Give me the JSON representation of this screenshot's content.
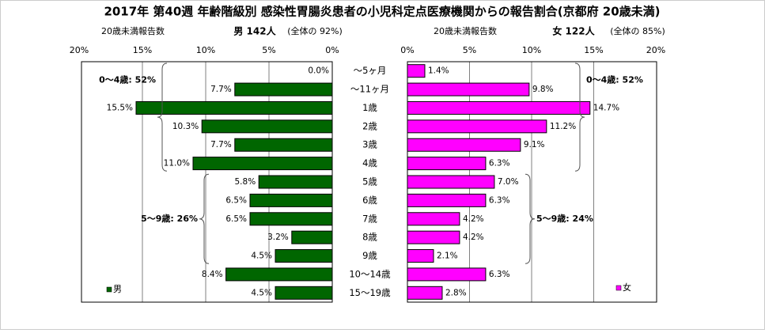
{
  "chart_data": {
    "type": "bar",
    "title": "2017年 第40週 年齢階級別 感染性胃腸炎患者の小児科定点医療機関からの報告割合(京都府 20歳未満)",
    "categories": [
      "～5ヶ月",
      "～11ヶ月",
      "1歳",
      "2歳",
      "3歳",
      "4歳",
      "5歳",
      "6歳",
      "7歳",
      "8歳",
      "9歳",
      "10～14歳",
      "15～19歳"
    ],
    "xticks_left": [
      "20%",
      "15%",
      "10%",
      "5%",
      "0%"
    ],
    "xticks_right": [
      "0%",
      "5%",
      "10%",
      "15%",
      "20%"
    ],
    "xlim": [
      0,
      20
    ],
    "series": [
      {
        "name": "男",
        "side": "left",
        "color": "#006600",
        "header_label": "20歳未満報告数",
        "header_count": "男 142人",
        "header_share": "(全体の 92%)",
        "values": [
          0.0,
          7.7,
          15.5,
          10.3,
          7.7,
          11.0,
          5.8,
          6.5,
          6.5,
          3.2,
          4.5,
          8.4,
          4.5
        ],
        "labels": [
          "0.0%",
          "7.7%",
          "15.5%",
          "10.3%",
          "7.7%",
          "11.0%",
          "5.8%",
          "6.5%",
          "6.5%",
          "3.2%",
          "4.5%",
          "8.4%",
          "4.5%"
        ],
        "groups": [
          {
            "label": "0～4歳: 52%",
            "from": 0,
            "to": 5
          },
          {
            "label": "5～9歳: 26%",
            "from": 6,
            "to": 10
          }
        ]
      },
      {
        "name": "女",
        "side": "right",
        "color": "#ff00ff",
        "header_label": "20歳未満報告数",
        "header_count": "女 122人",
        "header_share": "(全体の 85%)",
        "values": [
          1.4,
          9.8,
          14.7,
          11.2,
          9.1,
          6.3,
          7.0,
          6.3,
          4.2,
          4.2,
          2.1,
          6.3,
          2.8
        ],
        "labels": [
          "1.4%",
          "9.8%",
          "14.7%",
          "11.2%",
          "9.1%",
          "6.3%",
          "7.0%",
          "6.3%",
          "4.2%",
          "4.2%",
          "2.1%",
          "6.3%",
          "2.8%"
        ],
        "groups": [
          {
            "label": "0～4歳: 52%",
            "from": 0,
            "to": 5
          },
          {
            "label": "5～9歳: 24%",
            "from": 6,
            "to": 10
          }
        ]
      }
    ]
  }
}
